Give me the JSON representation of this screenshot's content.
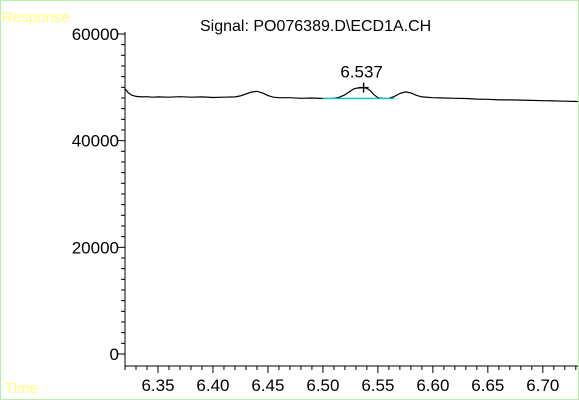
{
  "title": "Signal: PO076389.D\\ECD1A.CH",
  "ylabel": "Response",
  "xlabel": "Time",
  "colors": {
    "frame": "#b6f0a8",
    "axis_labels": "#ffff7a",
    "trace": "#000000",
    "baseline": "#00c8c8"
  },
  "chart_data": {
    "type": "line",
    "title": "Signal: PO076389.D\\ECD1A.CH",
    "xlabel": "Time",
    "ylabel": "Response",
    "xlim": [
      6.32,
      6.732
    ],
    "ylim": [
      0,
      60000
    ],
    "x_ticks": [
      6.35,
      6.4,
      6.45,
      6.5,
      6.55,
      6.6,
      6.65,
      6.7
    ],
    "x_tick_labels": [
      "6.35",
      "6.40",
      "6.45",
      "6.50",
      "6.55",
      "6.60",
      "6.65",
      "6.70"
    ],
    "x_minor_step": 0.01,
    "y_ticks": [
      0,
      20000,
      40000,
      60000
    ],
    "y_tick_labels": [
      "0",
      "20000",
      "40000",
      "60000"
    ],
    "y_minor_step": 2000,
    "grid": false,
    "series": [
      {
        "x": [
          6.32,
          6.323,
          6.326,
          6.33,
          6.335,
          6.34,
          6.345,
          6.35,
          6.36,
          6.37,
          6.38,
          6.39,
          6.4,
          6.41,
          6.42,
          6.425,
          6.43,
          6.435,
          6.44,
          6.445,
          6.45,
          6.455,
          6.46,
          6.47,
          6.48,
          6.49,
          6.5,
          6.51,
          6.515,
          6.52,
          6.525,
          6.528,
          6.531,
          6.534,
          6.537,
          6.54,
          6.543,
          6.546,
          6.55,
          6.555,
          6.56,
          6.565,
          6.57,
          6.575,
          6.58,
          6.585,
          6.59,
          6.6,
          6.61,
          6.62,
          6.63,
          6.64,
          6.65,
          6.66,
          6.67,
          6.68,
          6.69,
          6.7,
          6.71,
          6.72,
          6.732
        ],
        "y": [
          49700,
          49000,
          48550,
          48300,
          48200,
          48250,
          48150,
          48200,
          48150,
          48250,
          48150,
          48200,
          48100,
          48150,
          48200,
          48400,
          48750,
          49100,
          49250,
          48950,
          48450,
          48150,
          48050,
          48050,
          47950,
          48000,
          47900,
          47950,
          48150,
          48600,
          49300,
          49700,
          49850,
          49900,
          49950,
          49800,
          49400,
          48700,
          48050,
          47900,
          47950,
          48300,
          48850,
          49150,
          48950,
          48500,
          48200,
          48050,
          48000,
          47950,
          47900,
          47800,
          47750,
          47650,
          47650,
          47600,
          47550,
          47500,
          47450,
          47400,
          47350
        ]
      }
    ],
    "peaks": [
      {
        "label": "6.537",
        "retention_time": 6.537,
        "apex_response": 49950,
        "baseline_start": 6.5,
        "baseline_end": 6.565,
        "baseline_level": 47920
      }
    ]
  }
}
